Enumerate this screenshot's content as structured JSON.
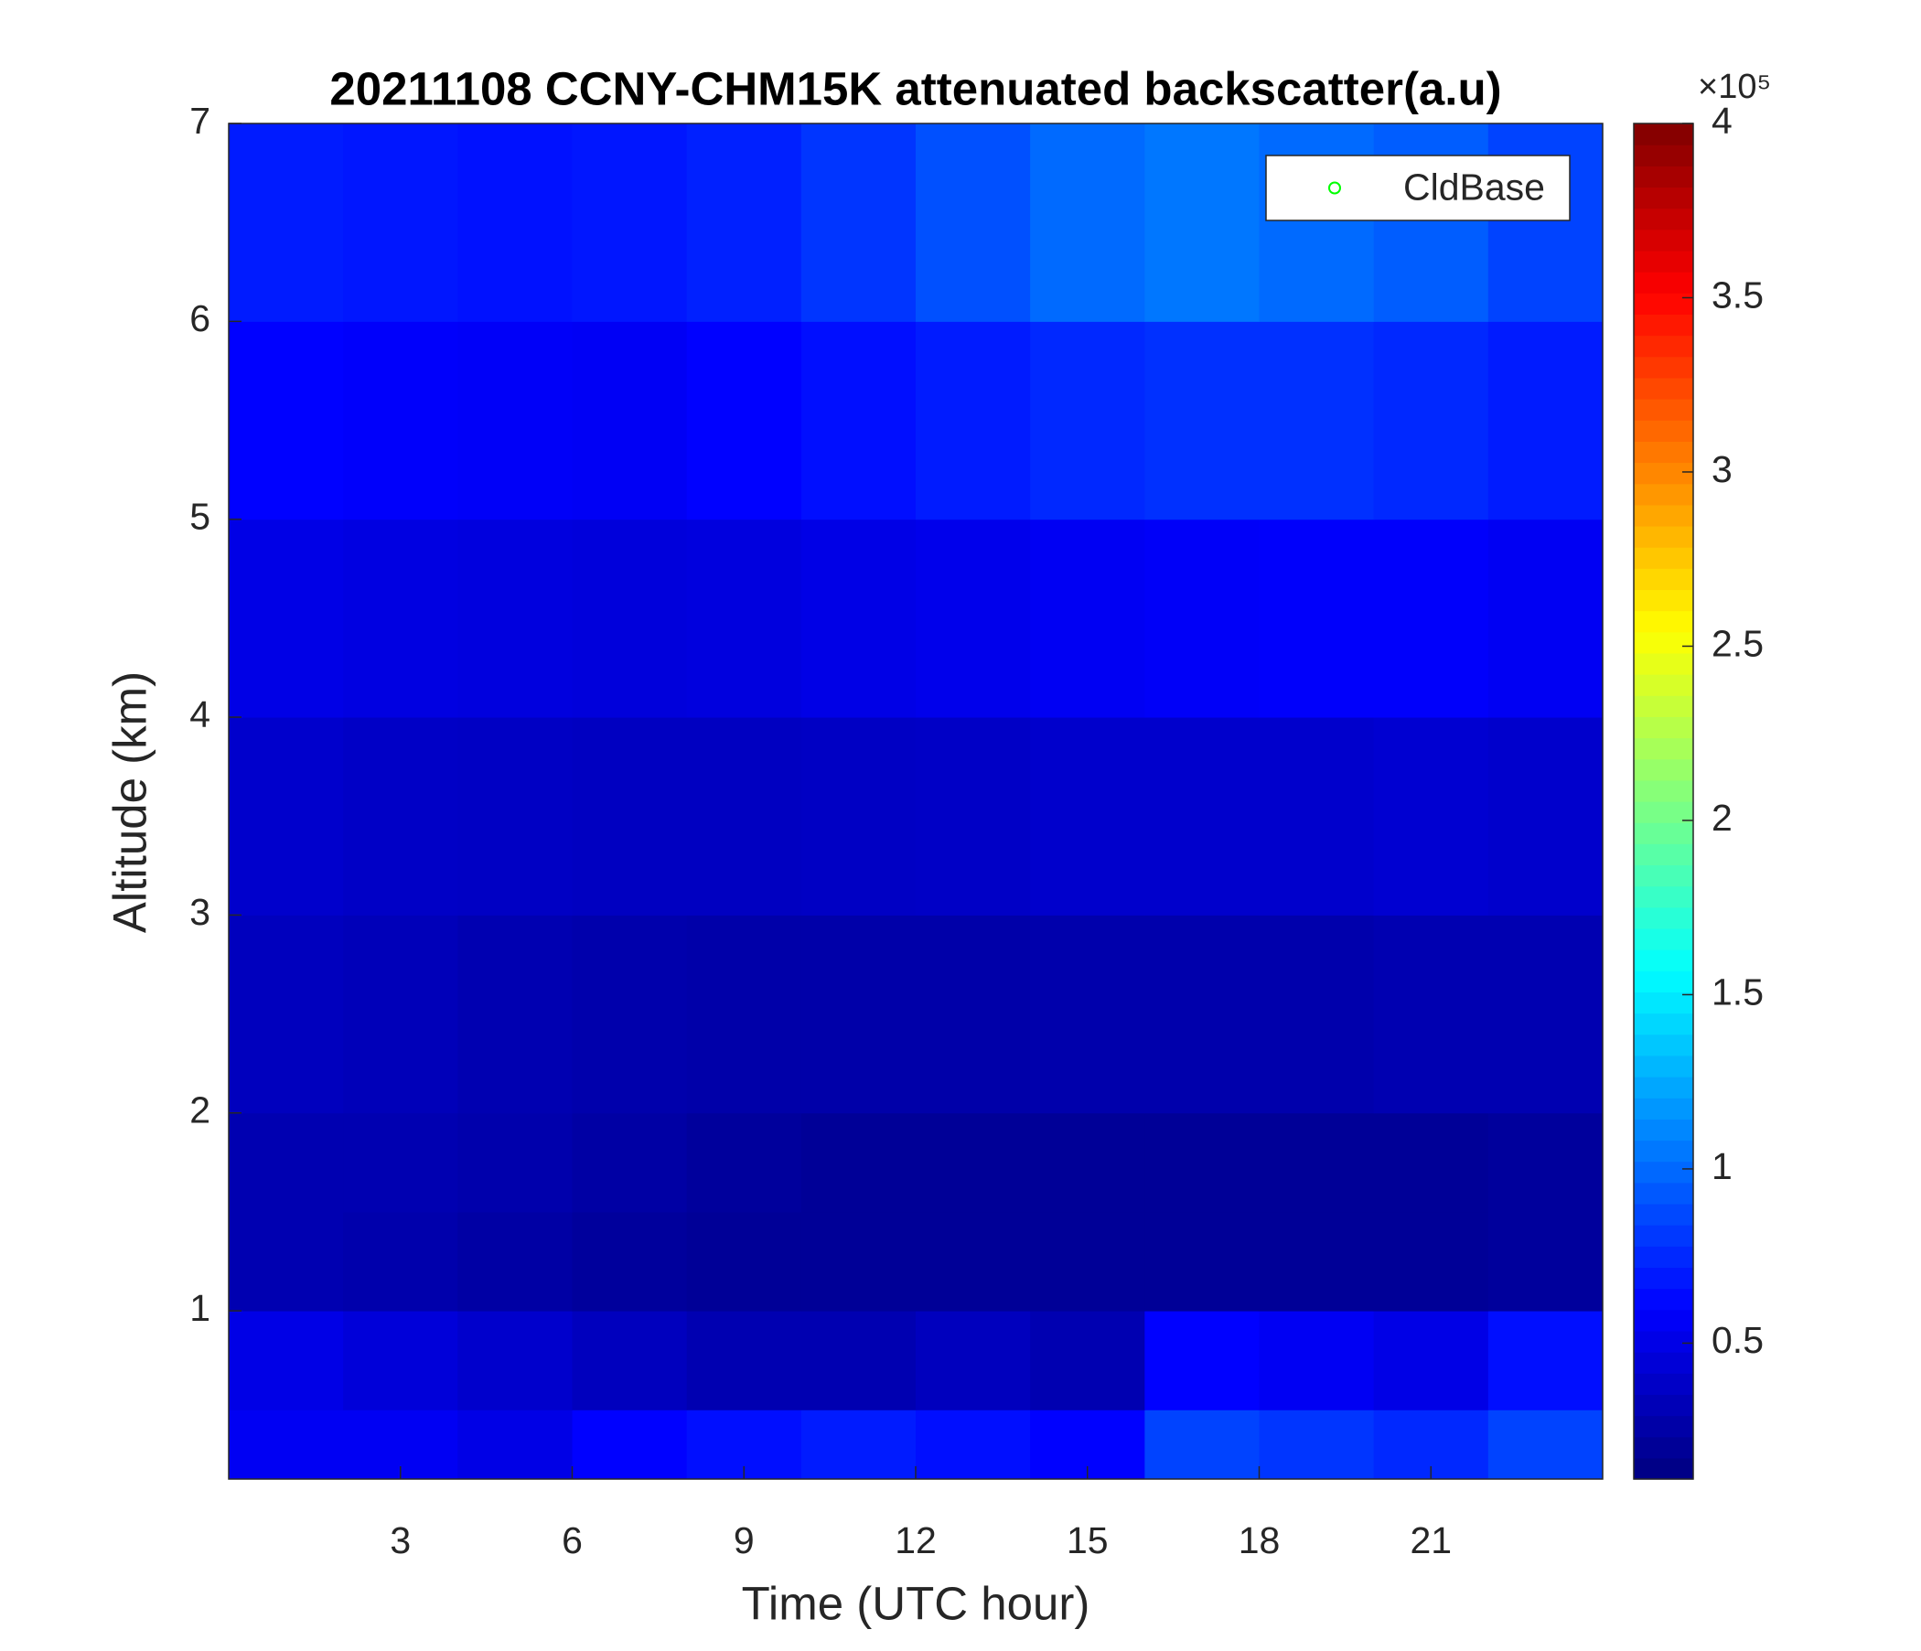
{
  "chart_data": {
    "type": "heatmap",
    "title": "20211108 CCNY-CHM15K attenuated backscatter(a.u)",
    "x_label": "Time (UTC hour)",
    "y_label": "Altitude (km)",
    "xlim": [
      0,
      24
    ],
    "xticks": [
      3,
      6,
      9,
      12,
      15,
      18,
      21
    ],
    "ylim": [
      0.15,
      7
    ],
    "yticks": [
      1,
      2,
      3,
      4,
      5,
      6,
      7
    ],
    "x_edges": [
      0,
      2,
      4,
      6,
      8,
      10,
      12,
      14,
      16,
      18,
      20,
      22,
      24
    ],
    "y_edges": [
      0.15,
      0.5,
      1,
      1.5,
      2,
      3,
      4,
      5,
      6,
      7
    ],
    "z": [
      [
        0.55,
        0.55,
        0.5,
        0.6,
        0.65,
        0.7,
        0.65,
        0.6,
        0.85,
        0.8,
        0.75,
        0.85
      ],
      [
        0.5,
        0.45,
        0.4,
        0.35,
        0.3,
        0.3,
        0.35,
        0.3,
        0.6,
        0.55,
        0.5,
        0.65
      ],
      [
        0.3,
        0.28,
        0.25,
        0.22,
        0.2,
        0.2,
        0.2,
        0.2,
        0.2,
        0.2,
        0.2,
        0.22
      ],
      [
        0.3,
        0.3,
        0.28,
        0.25,
        0.22,
        0.2,
        0.2,
        0.2,
        0.2,
        0.2,
        0.2,
        0.22
      ],
      [
        0.35,
        0.33,
        0.3,
        0.28,
        0.27,
        0.27,
        0.27,
        0.28,
        0.28,
        0.28,
        0.3,
        0.3
      ],
      [
        0.4,
        0.38,
        0.37,
        0.36,
        0.36,
        0.37,
        0.38,
        0.4,
        0.4,
        0.4,
        0.42,
        0.4
      ],
      [
        0.5,
        0.48,
        0.47,
        0.46,
        0.47,
        0.5,
        0.52,
        0.55,
        0.57,
        0.58,
        0.58,
        0.55
      ],
      [
        0.6,
        0.58,
        0.57,
        0.56,
        0.6,
        0.65,
        0.7,
        0.75,
        0.78,
        0.78,
        0.75,
        0.7
      ],
      [
        0.7,
        0.68,
        0.66,
        0.68,
        0.72,
        0.8,
        0.9,
        1.0,
        1.05,
        1.0,
        0.95,
        0.85
      ]
    ],
    "colormap": "jet",
    "clim": [
      0.11,
      4
    ],
    "cticks": [
      0.5,
      1,
      1.5,
      2,
      2.5,
      3,
      3.5,
      4
    ],
    "colorbar_exponent_label": "×10⁵",
    "legend": {
      "location": "northeast",
      "entries": [
        {
          "name": "CldBase",
          "color": "#00ff00",
          "marker": "circle"
        }
      ]
    }
  }
}
